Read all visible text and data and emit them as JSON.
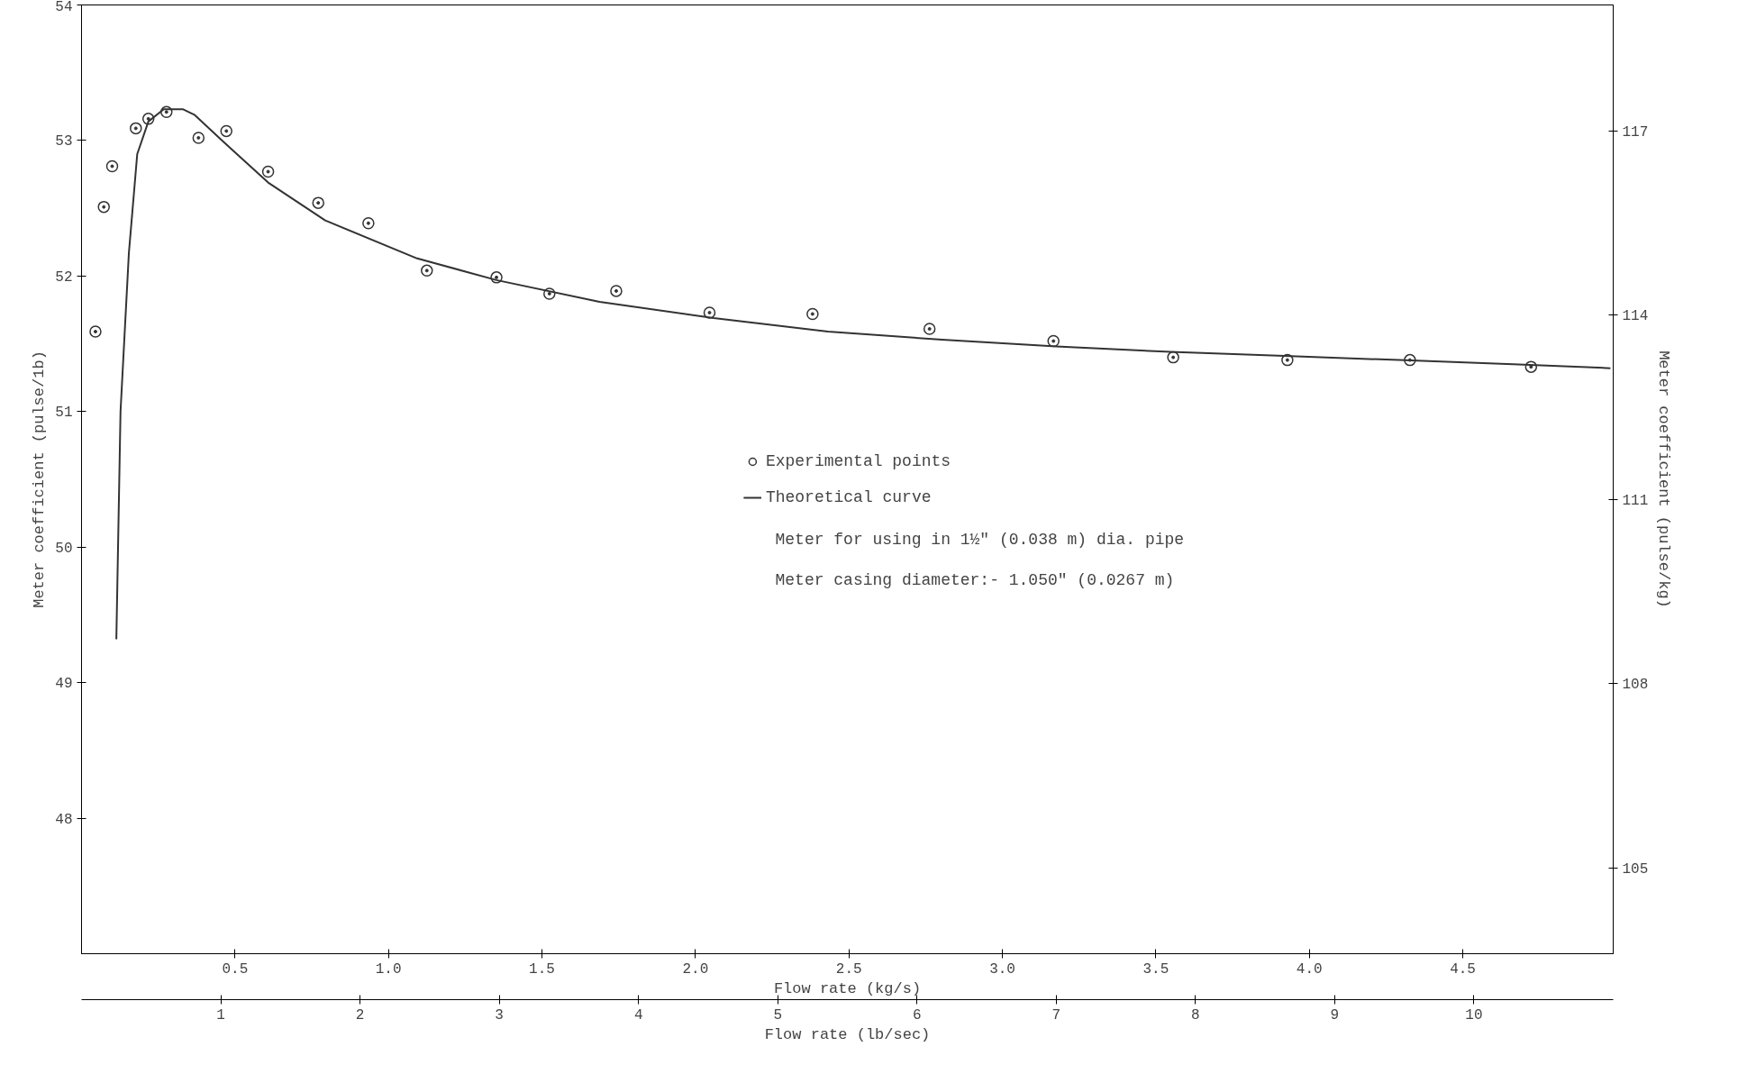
{
  "chart_data": {
    "type": "scatter",
    "xlabel": "Flow rate (lb/sec)",
    "x2label": "Flow rate (kg/s)",
    "ylabel": "Meter coefficient (pulse/1b)",
    "y2label": "Meter coefficient (pulse/kg)",
    "xlim": [
      0,
      11
    ],
    "xticks": [
      1,
      2,
      3,
      4,
      5,
      6,
      7,
      8,
      9,
      10
    ],
    "x2lim": [
      0,
      4.99
    ],
    "x2ticks": [
      {
        "value": 0.5,
        "label": "0.5"
      },
      {
        "value": 1,
        "label": "1.0"
      },
      {
        "value": 1.5,
        "label": "1.5"
      },
      {
        "value": 2,
        "label": "2.0"
      },
      {
        "value": 2.5,
        "label": "2.5"
      },
      {
        "value": 3,
        "label": "3.0"
      },
      {
        "value": 3.5,
        "label": "3.5"
      },
      {
        "value": 4,
        "label": "4.0"
      },
      {
        "value": 4.5,
        "label": "4.5"
      }
    ],
    "ylim": [
      47,
      54
    ],
    "yticks": [
      48,
      49,
      50,
      51,
      52,
      53,
      54
    ],
    "y2lim": [
      103.6,
      119.05
    ],
    "y2ticks": [
      105,
      108,
      111,
      114,
      117
    ],
    "grid": false,
    "legend": "center",
    "series": [
      {
        "name": "Experimental points",
        "marker": "circle",
        "color": "#333333",
        "x": [
          0.1,
          0.16,
          0.22,
          0.39,
          0.48,
          0.61,
          0.84,
          1.04,
          1.34,
          1.7,
          2.06,
          2.48,
          2.98,
          3.36,
          3.84,
          4.51,
          5.25,
          6.09,
          6.98,
          7.84,
          8.66,
          9.54,
          10.41
        ],
        "values": [
          51.59,
          52.51,
          52.81,
          53.09,
          53.16,
          53.21,
          53.02,
          53.07,
          52.77,
          52.54,
          52.39,
          52.04,
          51.99,
          51.87,
          51.89,
          51.73,
          51.72,
          51.61,
          51.52,
          51.4,
          51.38,
          51.38,
          51.33
        ]
      },
      {
        "name": "Theoretical curve",
        "type": "line",
        "line_style": "solid",
        "color": "#333333",
        "x": [
          0.25,
          0.28,
          0.34,
          0.4,
          0.48,
          0.59,
          0.73,
          0.81,
          1.02,
          1.34,
          1.75,
          2.41,
          2.98,
          3.72,
          4.54,
          5.36,
          6.18,
          7.0,
          7.82,
          8.64,
          9.46,
          10.28,
          10.98
        ],
        "values": [
          49.32,
          51.0,
          52.17,
          52.9,
          53.14,
          53.23,
          53.23,
          53.19,
          52.99,
          52.69,
          52.41,
          52.13,
          51.97,
          51.81,
          51.69,
          51.59,
          51.53,
          51.48,
          51.44,
          51.41,
          51.38,
          51.35,
          51.32
        ]
      }
    ],
    "annotations": [
      "Meter for using in 1½\" (0.038 m) dia. pipe",
      "Meter casing diameter:-  1.050\" (0.0267 m)"
    ]
  }
}
